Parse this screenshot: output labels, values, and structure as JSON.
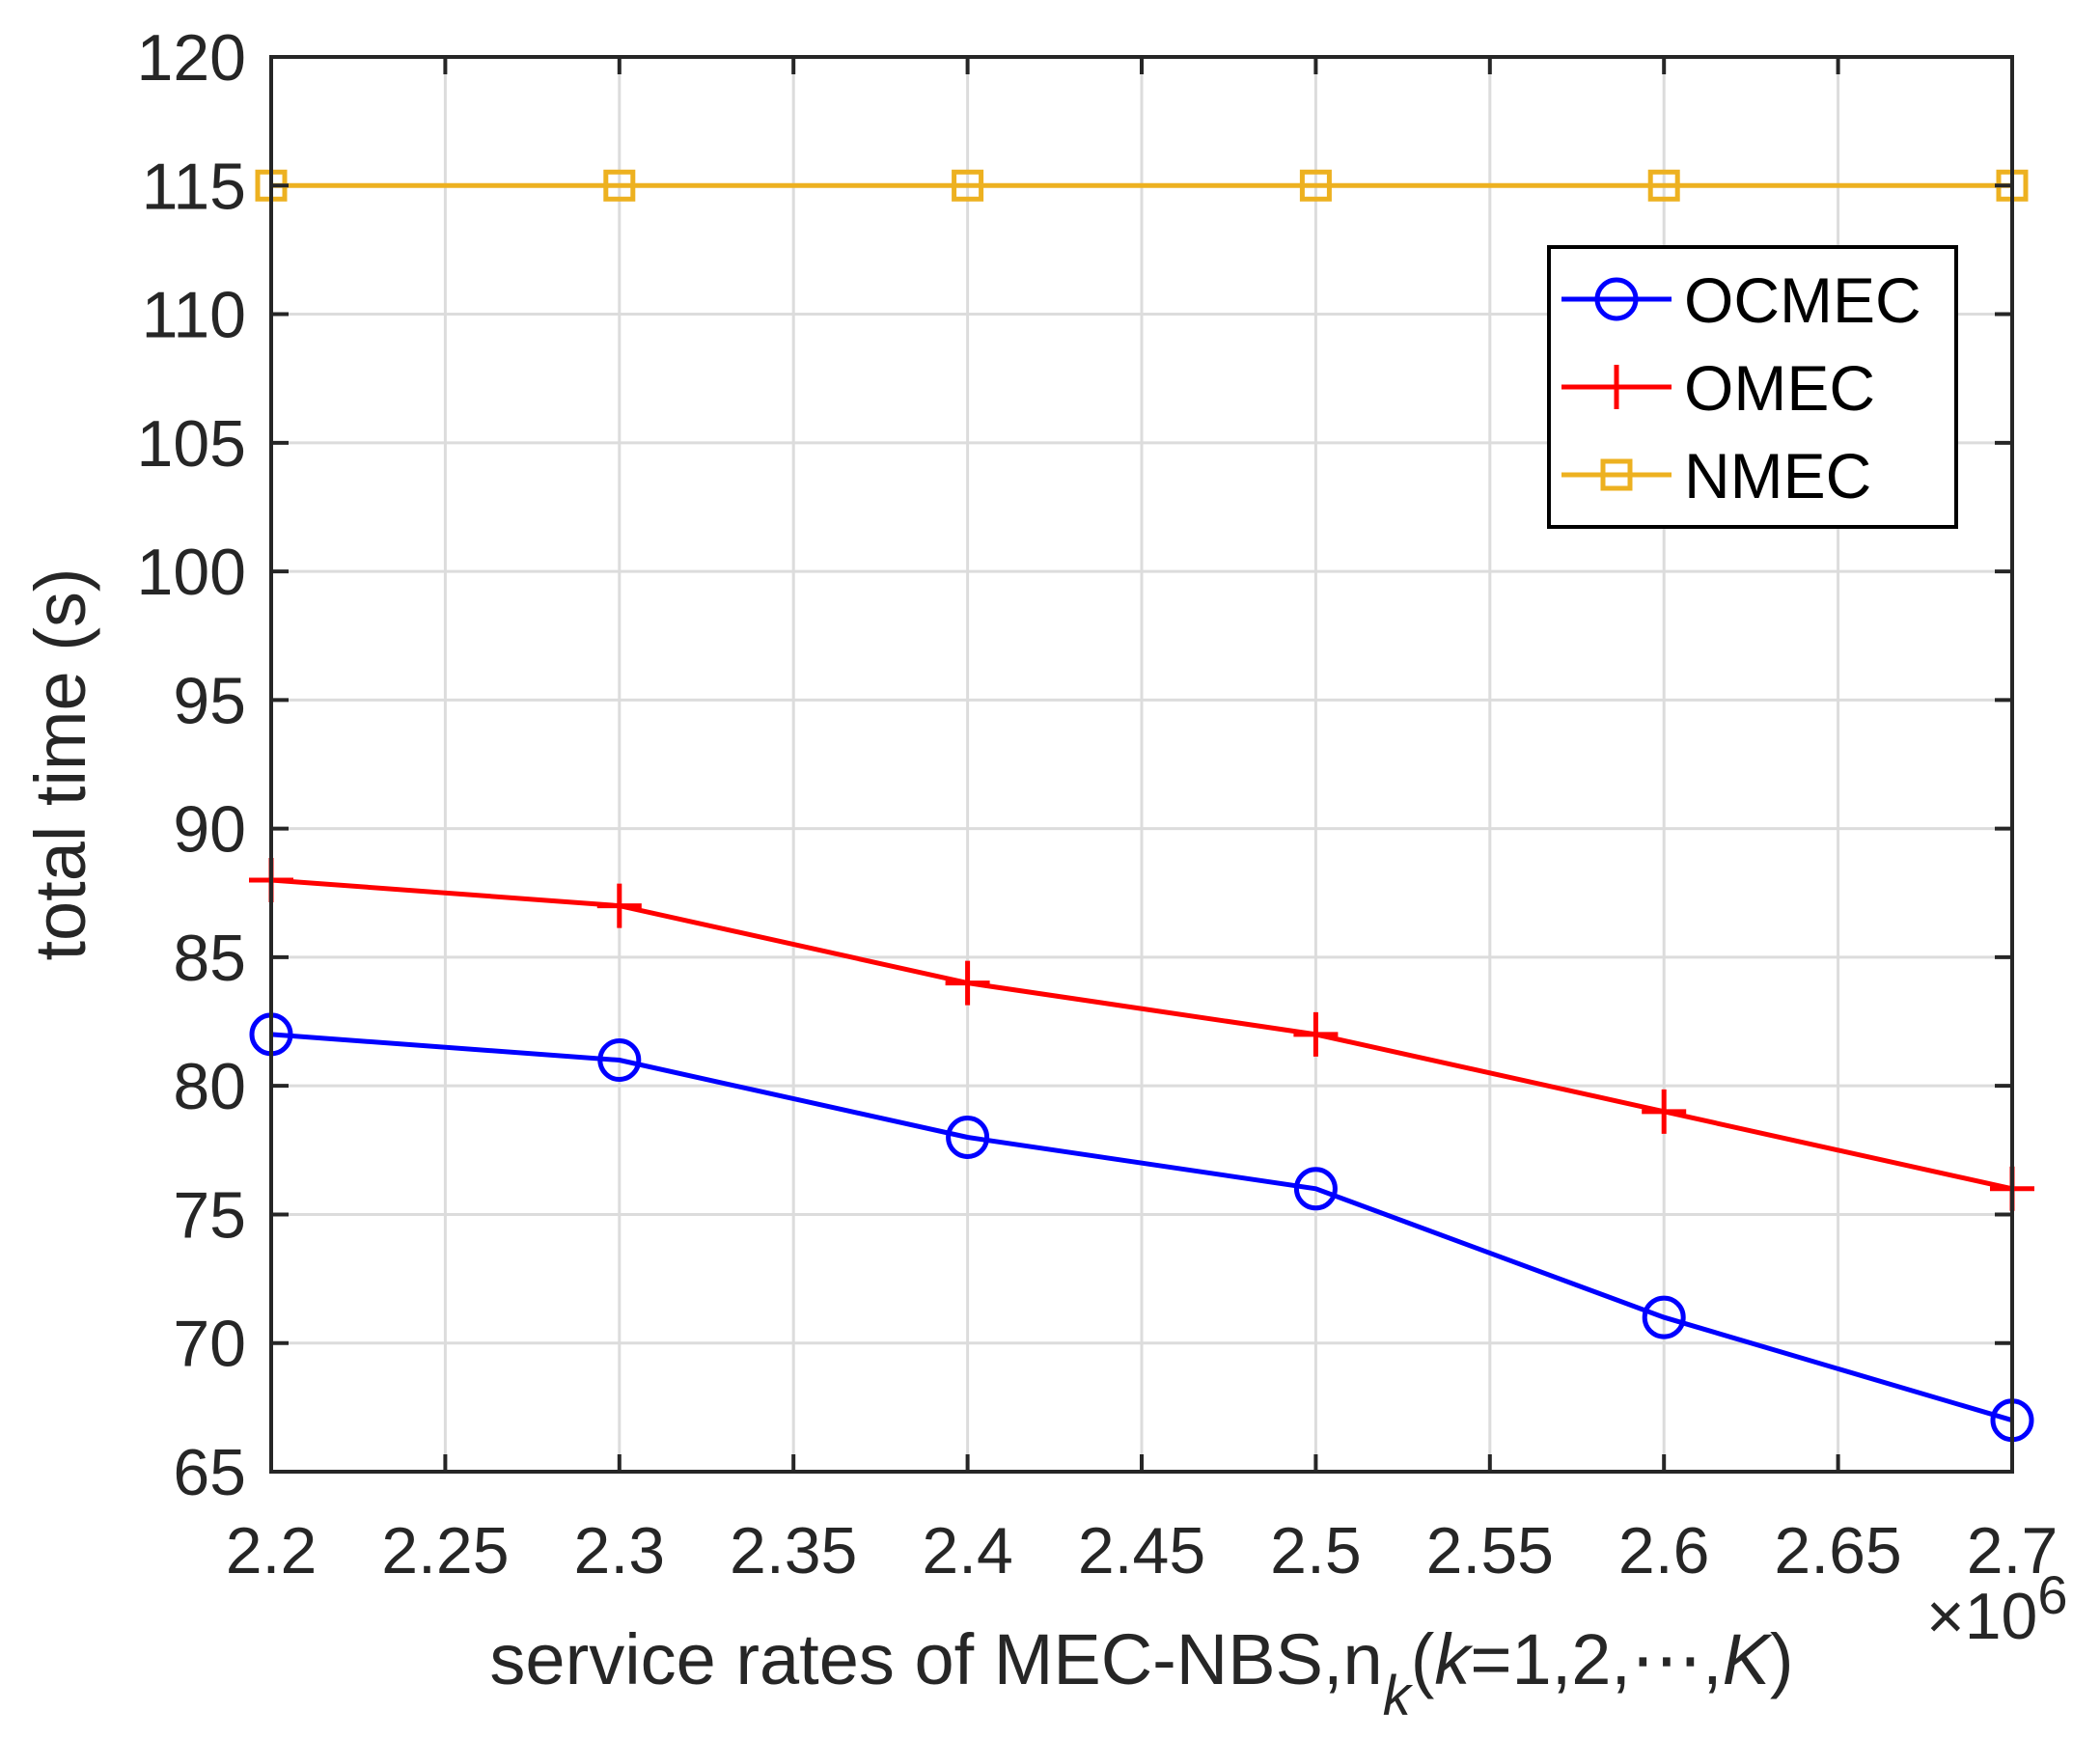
{
  "chart_data": {
    "type": "line",
    "x": [
      2.2,
      2.3,
      2.4,
      2.5,
      2.6,
      2.7
    ],
    "series": [
      {
        "name": "OCMEC",
        "values": [
          82,
          81,
          78,
          76,
          71,
          67
        ],
        "color": "#0000ff",
        "marker": "circle"
      },
      {
        "name": "OMEC",
        "values": [
          88,
          87,
          84,
          82,
          79,
          76
        ],
        "color": "#ff0000",
        "marker": "plus"
      },
      {
        "name": "NMEC",
        "values": [
          115,
          115,
          115,
          115,
          115,
          115
        ],
        "color": "#edb120",
        "marker": "square"
      }
    ],
    "xlim": [
      2.2,
      2.7
    ],
    "ylim": [
      65,
      120
    ],
    "xticks": [
      "2.2",
      "2.25",
      "2.3",
      "2.35",
      "2.4",
      "2.45",
      "2.5",
      "2.55",
      "2.6",
      "2.65",
      "2.7"
    ],
    "yticks": [
      "65",
      "70",
      "75",
      "80",
      "85",
      "90",
      "95",
      "100",
      "105",
      "110",
      "115",
      "120"
    ],
    "ylabel": "total time (s)",
    "xlabel": {
      "main": "service rates of MEC-NBS,n",
      "sub": "k",
      "open": "(",
      "k_italic": "k",
      "middle": "=1,2,⋯,",
      "K_italic": "K",
      "close": ")"
    },
    "x_exponent": {
      "base": "×10",
      "power": "6"
    },
    "grid": true,
    "legend_position": "top-right"
  }
}
